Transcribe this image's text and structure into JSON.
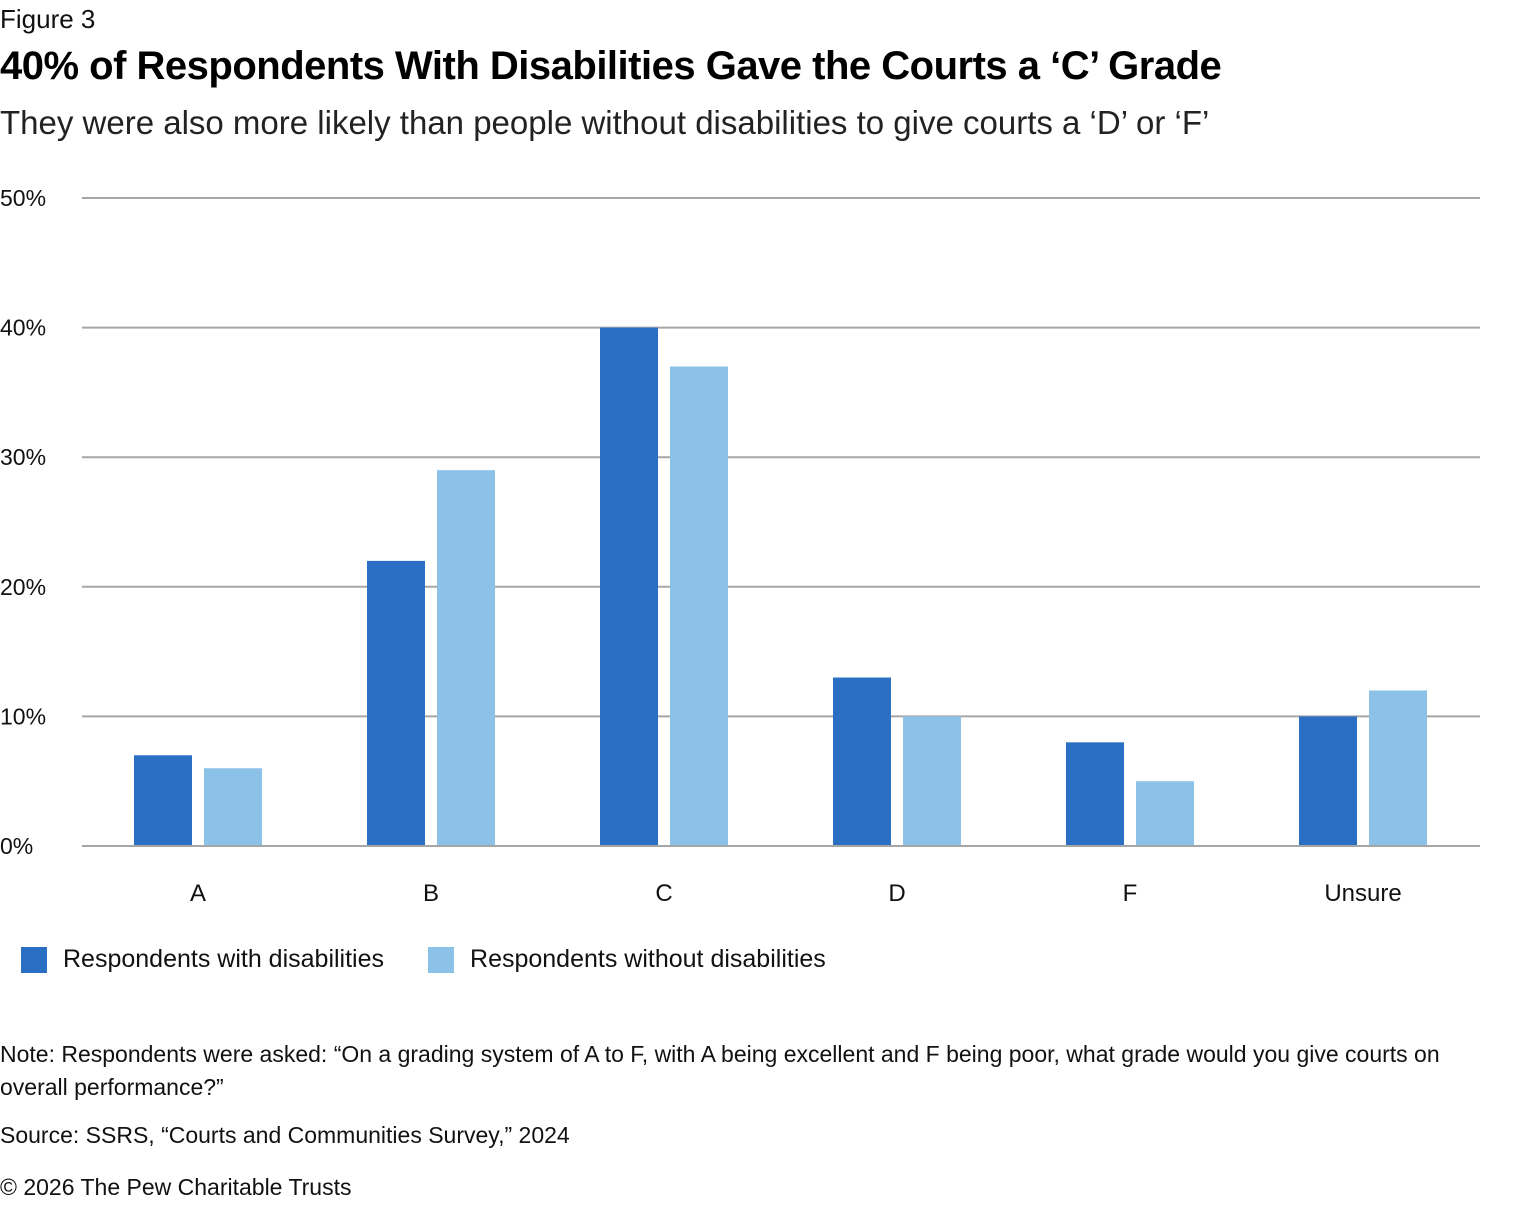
{
  "figure_label": "Figure 3",
  "chart_data": {
    "type": "bar",
    "title": "40% of Respondents With Disabilities Gave the Courts a ‘C’ Grade",
    "subtitle": "They were also more likely than people without disabilities to give courts a ‘D’ or ‘F’",
    "xlabel": "",
    "ylabel": "",
    "categories": [
      "A",
      "B",
      "C",
      "D",
      "F",
      "Unsure"
    ],
    "series": [
      {
        "name": "Respondents with disabilities",
        "color": "#2B6FC4",
        "values": [
          7,
          22,
          40,
          13,
          8,
          10
        ]
      },
      {
        "name": "Respondents without disabilities",
        "color": "#8CC2E8",
        "values": [
          6,
          29,
          37,
          10,
          5,
          12
        ]
      }
    ],
    "ylim": [
      0,
      50
    ],
    "yticks": [
      0,
      10,
      20,
      30,
      40,
      50
    ],
    "ytick_labels": [
      "0%",
      "10%",
      "20%",
      "30%",
      "40%",
      "50%"
    ],
    "grid": true,
    "legend_position": "bottom-left"
  },
  "note": "Note: Respondents were asked: “On a grading system of A to F, with A being excellent and F being poor, what grade would you give courts on overall performance?”",
  "source": "Source: SSRS, “Courts and Communities Survey,” 2024",
  "copyright": "© 2026 The Pew Charitable Trusts"
}
